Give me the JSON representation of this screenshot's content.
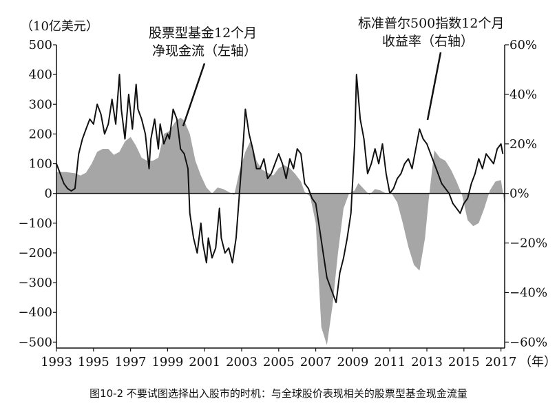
{
  "caption": "图10-2 不要试图选择出入股市的时机：与全球股价表现相关的股票型基金现金流量",
  "chart_data": {
    "type": "area+line",
    "left_unit": "（10亿美元）",
    "x_unit": "（年）",
    "xlim": [
      1993,
      2017.2
    ],
    "ylim_left": [
      -520,
      500
    ],
    "ylim_right": [
      -62.4,
      60
    ],
    "x_ticks": [
      "1993",
      "1995",
      "1997",
      "1999",
      "2001",
      "2003",
      "2005",
      "2007",
      "2009",
      "2011",
      "2013",
      "2015",
      "2017"
    ],
    "y_ticks_left": [
      "500",
      "400",
      "300",
      "200",
      "100",
      "0",
      "−100",
      "−200",
      "−300",
      "−400",
      "−500"
    ],
    "y_ticks_right": [
      "60%",
      "40%",
      "20%",
      "0%",
      "−20%",
      "−40%",
      "−60%"
    ],
    "colors": {
      "area": "#a6a6a6",
      "line": "#111111"
    },
    "series": [
      {
        "name": "股票型基金12个月净现金流（左轴）",
        "axis": "left",
        "style": "area",
        "label_lines": [
          "股票型基金12个月",
          "净现金流（左轴）"
        ],
        "x": [
          1993.0,
          1993.5,
          1994.0,
          1994.3,
          1994.6,
          1994.9,
          1995.2,
          1995.5,
          1995.8,
          1996.1,
          1996.4,
          1996.7,
          1997.0,
          1997.3,
          1997.6,
          1997.9,
          1998.2,
          1998.5,
          1998.8,
          1999.1,
          1999.4,
          1999.7,
          1999.9,
          2000.2,
          2000.5,
          2000.8,
          2001.1,
          2001.4,
          2001.7,
          2002.0,
          2002.3,
          2002.6,
          2002.9,
          2003.2,
          2003.5,
          2003.8,
          2004.1,
          2004.4,
          2004.7,
          2005.0,
          2005.3,
          2005.6,
          2005.9,
          2006.2,
          2006.4,
          2006.7,
          2007.0,
          2007.3,
          2007.6,
          2007.9,
          2008.2,
          2008.5,
          2008.8,
          2009.1,
          2009.3,
          2009.6,
          2009.9,
          2010.2,
          2010.5,
          2010.8,
          2011.1,
          2011.4,
          2011.7,
          2012.0,
          2012.3,
          2012.6,
          2012.9,
          2013.1,
          2013.4,
          2013.7,
          2014.0,
          2014.3,
          2014.6,
          2014.9,
          2015.2,
          2015.5,
          2015.8,
          2016.1,
          2016.4,
          2016.7,
          2017.0,
          2017.1,
          2017.2
        ],
        "values": [
          72,
          72,
          68,
          60,
          70,
          100,
          140,
          150,
          150,
          130,
          140,
          175,
          190,
          160,
          120,
          110,
          110,
          120,
          200,
          210,
          240,
          255,
          245,
          200,
          110,
          60,
          20,
          0,
          20,
          15,
          5,
          -5,
          80,
          140,
          180,
          110,
          80,
          70,
          60,
          85,
          95,
          85,
          65,
          40,
          5,
          -10,
          -100,
          -450,
          -510,
          -380,
          -200,
          -50,
          0,
          10,
          35,
          15,
          -5,
          15,
          10,
          0,
          0,
          -30,
          -100,
          -180,
          -240,
          -260,
          -150,
          -20,
          145,
          120,
          110,
          80,
          40,
          -5,
          -90,
          -110,
          -100,
          -50,
          10,
          40,
          45,
          5,
          -40
        ]
      },
      {
        "name": "标准普尔500指数12个月收益率（右轴）",
        "axis": "right",
        "style": "line",
        "label_lines": [
          "标准普尔500指数12个月",
          "收益率（右轴）"
        ],
        "x": [
          1993.0,
          1993.2,
          1993.4,
          1993.6,
          1993.8,
          1994.0,
          1994.2,
          1994.4,
          1994.6,
          1994.8,
          1995.0,
          1995.2,
          1995.4,
          1995.6,
          1995.8,
          1996.0,
          1996.2,
          1996.4,
          1996.5,
          1996.7,
          1996.9,
          1997.1,
          1997.3,
          1997.4,
          1997.6,
          1997.8,
          1998.0,
          1998.1,
          1998.3,
          1998.5,
          1998.6,
          1998.8,
          1999.0,
          1999.1,
          1999.3,
          1999.5,
          1999.7,
          1999.9,
          2000.1,
          2000.2,
          2000.4,
          2000.6,
          2000.8,
          2000.9,
          2001.1,
          2001.2,
          2001.4,
          2001.6,
          2001.8,
          2001.9,
          2002.1,
          2002.3,
          2002.5,
          2002.7,
          2002.9,
          2003.1,
          2003.2,
          2003.4,
          2003.6,
          2003.8,
          2004.0,
          2004.2,
          2004.4,
          2004.6,
          2004.8,
          2005.0,
          2005.2,
          2005.4,
          2005.6,
          2005.8,
          2006.0,
          2006.2,
          2006.4,
          2006.6,
          2006.8,
          2007.0,
          2007.2,
          2007.4,
          2007.6,
          2007.8,
          2008.0,
          2008.1,
          2008.3,
          2008.5,
          2008.7,
          2008.9,
          2009.1,
          2009.2,
          2009.4,
          2009.6,
          2009.8,
          2010.0,
          2010.2,
          2010.4,
          2010.6,
          2010.8,
          2011.0,
          2011.2,
          2011.4,
          2011.6,
          2011.8,
          2012.0,
          2012.2,
          2012.4,
          2012.6,
          2012.8,
          2013.0,
          2013.2,
          2013.4,
          2013.6,
          2013.8,
          2014.0,
          2014.2,
          2014.4,
          2014.6,
          2014.8,
          2015.0,
          2015.2,
          2015.4,
          2015.6,
          2015.8,
          2016.0,
          2016.2,
          2016.4,
          2016.6,
          2016.8,
          2017.0,
          2017.1
        ],
        "values": [
          12,
          8,
          4,
          2,
          1,
          2,
          16,
          22,
          26,
          30,
          28,
          36,
          32,
          24,
          28,
          38,
          28,
          48,
          34,
          22,
          40,
          26,
          44,
          34,
          30,
          24,
          10,
          22,
          30,
          18,
          28,
          20,
          24,
          22,
          34,
          30,
          18,
          16,
          10,
          -8,
          -18,
          -24,
          -12,
          -20,
          -28,
          -18,
          -26,
          -22,
          -6,
          -18,
          -24,
          -22,
          -28,
          -18,
          2,
          22,
          34,
          24,
          18,
          10,
          10,
          14,
          6,
          8,
          12,
          16,
          12,
          6,
          14,
          10,
          18,
          16,
          4,
          2,
          -2,
          -4,
          -14,
          -24,
          -34,
          -38,
          -42,
          -44,
          -32,
          -26,
          -18,
          -8,
          20,
          48,
          30,
          22,
          8,
          12,
          18,
          12,
          20,
          8,
          0,
          2,
          6,
          8,
          12,
          14,
          10,
          18,
          26,
          22,
          20,
          16,
          12,
          8,
          4,
          2,
          0,
          -4,
          -6,
          -8,
          -4,
          -2,
          4,
          8,
          14,
          10,
          16,
          14,
          12,
          18,
          20,
          16
        ]
      }
    ]
  }
}
